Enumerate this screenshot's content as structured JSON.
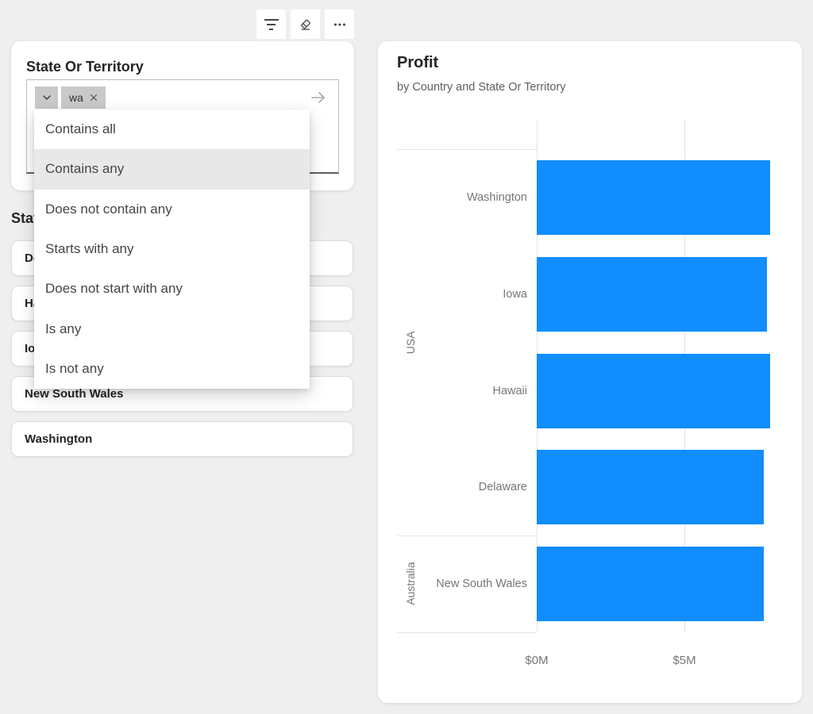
{
  "toolbar": {
    "buttons": [
      {
        "name": "filter",
        "tooltip": "Filters"
      },
      {
        "name": "eraser",
        "tooltip": "Clear selections"
      },
      {
        "name": "more-options",
        "tooltip": "More options"
      }
    ]
  },
  "slicer_search": {
    "title": "State Or Territory",
    "chip": {
      "text": "wa"
    },
    "dropdown": {
      "items": [
        "Contains all",
        "Contains any",
        "Does not contain any",
        "Starts with any",
        "Does not start with any",
        "Is any",
        "Is not any"
      ],
      "selected": "Contains any",
      "selected_index": 1
    }
  },
  "slicer_tiles": {
    "title": "State Or Territory",
    "items": [
      "Delaware",
      "Hawaii",
      "Iowa",
      "New South Wales",
      "Washington"
    ]
  },
  "chart_data": {
    "type": "bar",
    "orientation": "horizontal",
    "title": "Profit",
    "subtitle": "by Country and State Or Territory",
    "bar_color": "#118DFF",
    "grid": true,
    "legend": "none",
    "value_axis": {
      "unit": "millions USD",
      "ticks": [
        {
          "label": "$0M",
          "value": 0
        },
        {
          "label": "$5M",
          "value": 5
        }
      ],
      "range_millions": [
        0,
        7.9
      ]
    },
    "groups": [
      {
        "country": "USA",
        "bars": [
          {
            "label": "Washington",
            "value_millions": 7.9
          },
          {
            "label": "Iowa",
            "value_millions": 7.8
          },
          {
            "label": "Hawaii",
            "value_millions": 7.9
          },
          {
            "label": "Delaware",
            "value_millions": 7.7
          }
        ]
      },
      {
        "country": "Australia",
        "bars": [
          {
            "label": "New South Wales",
            "value_millions": 7.7
          }
        ]
      }
    ]
  }
}
